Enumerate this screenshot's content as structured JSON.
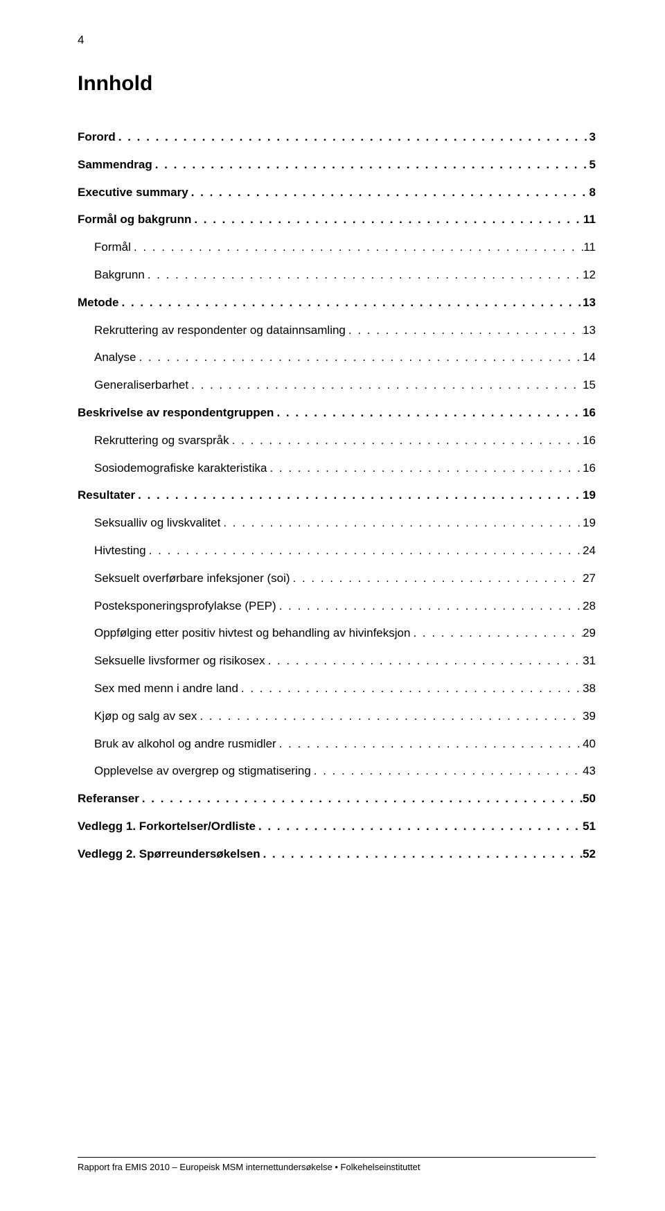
{
  "page_number": "4",
  "title": "Innhold",
  "leader_char": ". ",
  "toc": [
    {
      "label": "Forord",
      "page": "3",
      "level": 0,
      "bold": true
    },
    {
      "label": "Sammendrag",
      "page": "5",
      "level": 0,
      "bold": true
    },
    {
      "label": "Executive summary",
      "page": "8",
      "level": 0,
      "bold": true
    },
    {
      "label": "Formål og bakgrunn",
      "page": "11",
      "level": 0,
      "bold": true
    },
    {
      "label": "Formål",
      "page": "11",
      "level": 1,
      "bold": false
    },
    {
      "label": "Bakgrunn",
      "page": "12",
      "level": 1,
      "bold": false
    },
    {
      "label": "Metode",
      "page": "13",
      "level": 0,
      "bold": true
    },
    {
      "label": "Rekruttering av respondenter og datainnsamling",
      "page": "13",
      "level": 1,
      "bold": false
    },
    {
      "label": "Analyse",
      "page": "14",
      "level": 1,
      "bold": false
    },
    {
      "label": "Generaliserbarhet",
      "page": "15",
      "level": 1,
      "bold": false
    },
    {
      "label": "Beskrivelse av respondentgruppen",
      "page": "16",
      "level": 0,
      "bold": true
    },
    {
      "label": "Rekruttering og svarspråk",
      "page": "16",
      "level": 1,
      "bold": false
    },
    {
      "label": "Sosiodemografiske karakteristika",
      "page": "16",
      "level": 1,
      "bold": false
    },
    {
      "label": "Resultater",
      "page": "19",
      "level": 0,
      "bold": true
    },
    {
      "label": "Seksualliv og livskvalitet",
      "page": "19",
      "level": 1,
      "bold": false
    },
    {
      "label": "Hivtesting",
      "page": "24",
      "level": 1,
      "bold": false
    },
    {
      "label": "Seksuelt overførbare infeksjoner (soi)",
      "page": "27",
      "level": 1,
      "bold": false
    },
    {
      "label": "Posteksponeringsprofylakse (PEP)",
      "page": "28",
      "level": 1,
      "bold": false
    },
    {
      "label": "Oppfølging etter positiv hivtest og behandling av hivinfeksjon",
      "page": "29",
      "level": 1,
      "bold": false
    },
    {
      "label": "Seksuelle livsformer og risikosex",
      "page": "31",
      "level": 1,
      "bold": false
    },
    {
      "label": "Sex med menn i andre land",
      "page": "38",
      "level": 1,
      "bold": false
    },
    {
      "label": "Kjøp og salg av sex",
      "page": "39",
      "level": 1,
      "bold": false
    },
    {
      "label": "Bruk av alkohol og andre rusmidler",
      "page": "40",
      "level": 1,
      "bold": false
    },
    {
      "label": "Opplevelse av overgrep og stigmatisering",
      "page": "43",
      "level": 1,
      "bold": false
    },
    {
      "label": "Referanser",
      "page": "50",
      "level": 0,
      "bold": true
    },
    {
      "label": "Vedlegg 1. Forkortelser/Ordliste",
      "page": "51",
      "level": 0,
      "bold": true
    },
    {
      "label": "Vedlegg 2. Spørreundersøkelsen",
      "page": "52",
      "level": 0,
      "bold": true
    }
  ],
  "footer": "Rapport fra EMIS 2010 – Europeisk MSM internettundersøkelse • Folkehelseinstituttet"
}
